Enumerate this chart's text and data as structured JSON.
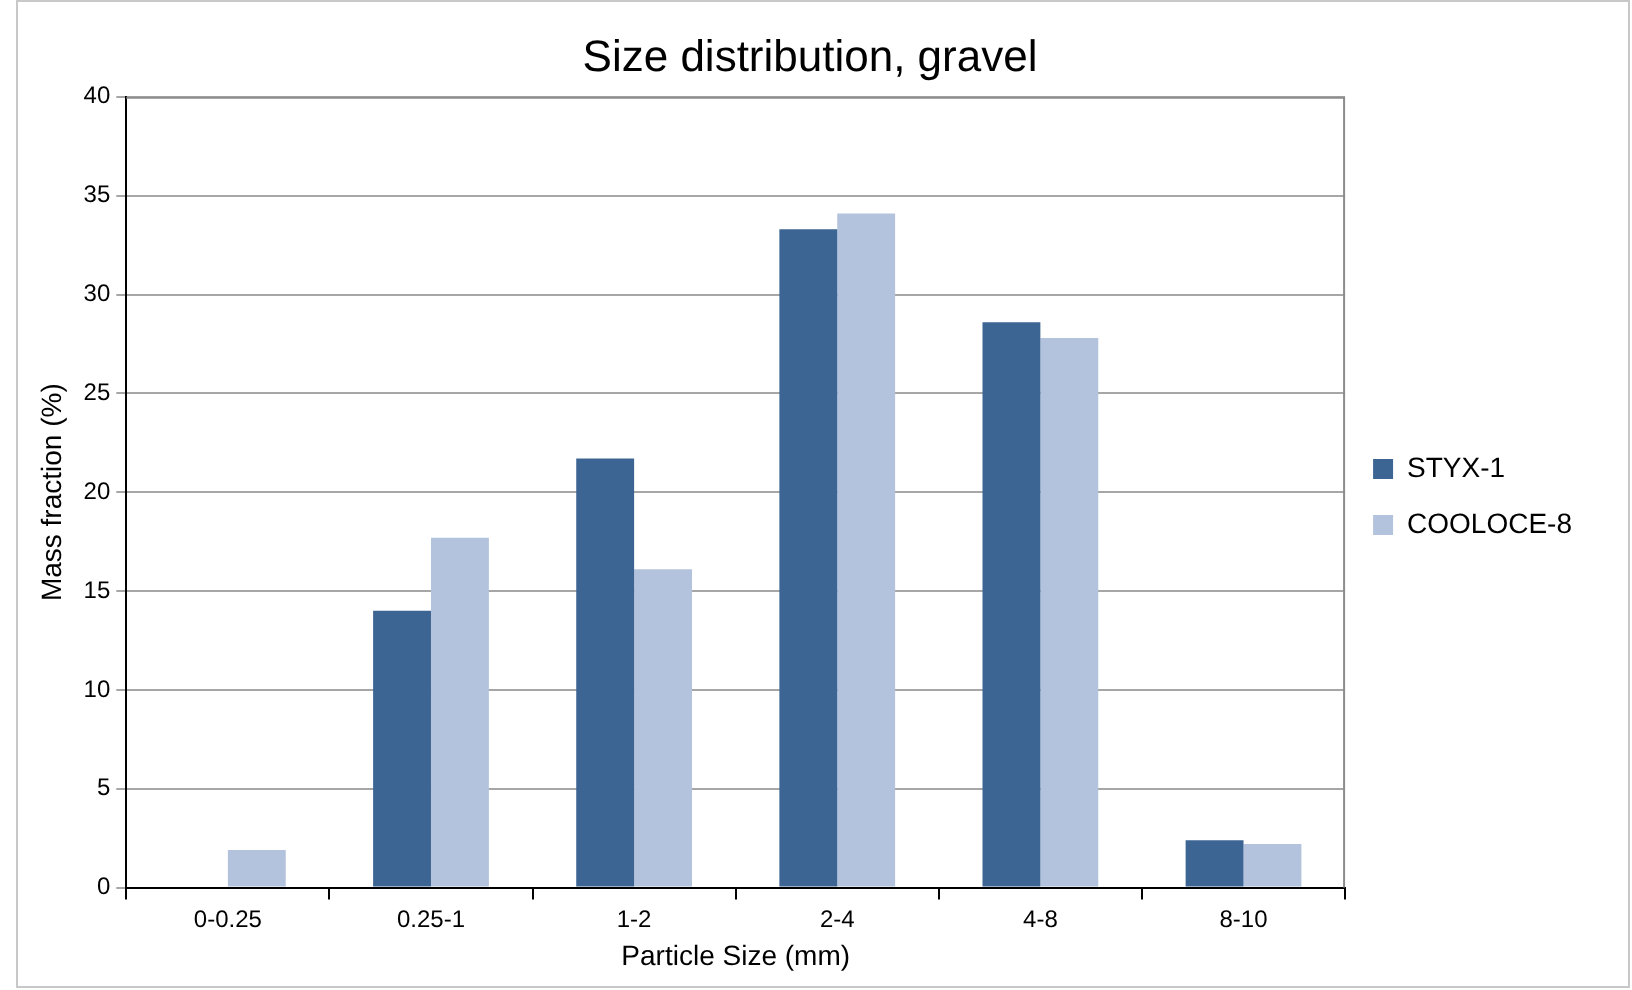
{
  "chart_data": {
    "type": "bar",
    "title": "Size distribution, gravel",
    "xlabel": "Particle Size (mm)",
    "ylabel": "Mass fraction (%)",
    "categories": [
      "0-0.25",
      "0.25-1",
      "1-2",
      "2-4",
      "4-8",
      "8-10"
    ],
    "series": [
      {
        "name": "STYX-1",
        "color": "#3d6594",
        "values": [
          0,
          14.0,
          21.7,
          33.3,
          28.6,
          2.4
        ]
      },
      {
        "name": "COOLOCE-8",
        "color": "#b4c3dd",
        "values": [
          1.9,
          17.7,
          16.1,
          34.1,
          27.8,
          2.2
        ]
      }
    ],
    "ylim": [
      0,
      40
    ],
    "yticks": [
      0,
      5,
      10,
      15,
      20,
      25,
      30,
      35,
      40
    ],
    "grid": "y",
    "legend": "right"
  }
}
